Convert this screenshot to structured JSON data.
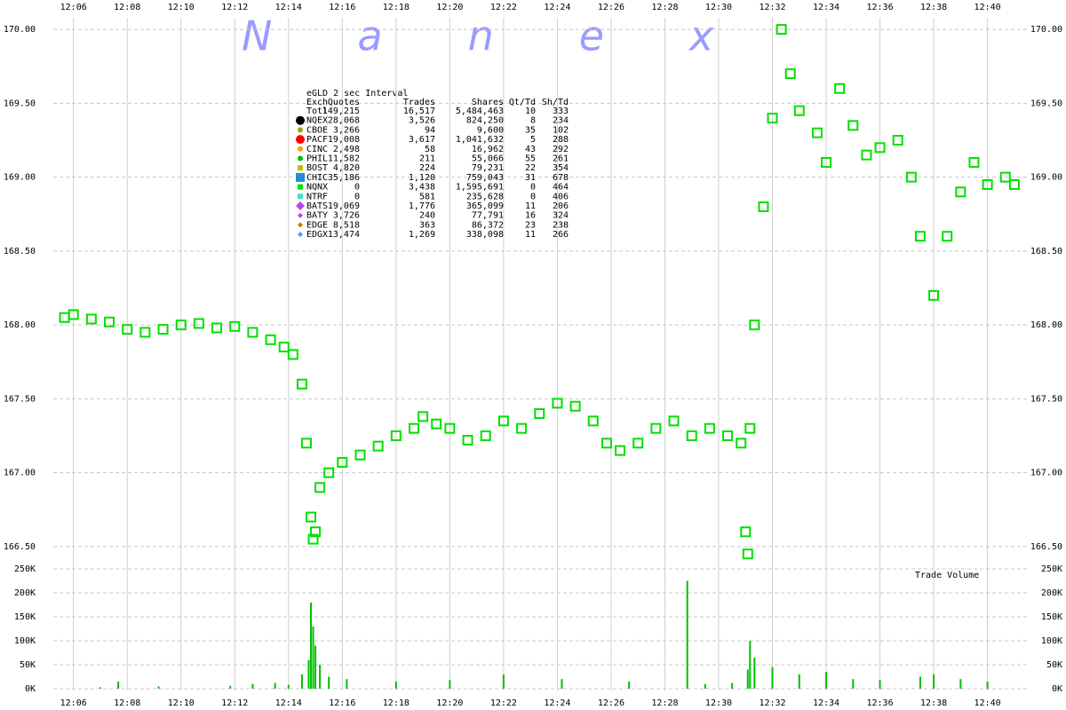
{
  "chart_data": [
    {
      "type": "scatter",
      "watermark": "Nanex",
      "x": [
        "12:05:40",
        "12:06:00",
        "12:06:40",
        "12:07:20",
        "12:08:00",
        "12:08:40",
        "12:09:20",
        "12:10:00",
        "12:10:40",
        "12:11:20",
        "12:12:00",
        "12:12:40",
        "12:13:20",
        "12:13:50",
        "12:14:10",
        "12:14:30",
        "12:14:40",
        "12:14:50",
        "12:14:55",
        "12:15:00",
        "12:15:10",
        "12:15:30",
        "12:16:00",
        "12:16:40",
        "12:17:20",
        "12:18:00",
        "12:18:40",
        "12:19:00",
        "12:19:30",
        "12:20:00",
        "12:20:40",
        "12:21:20",
        "12:22:00",
        "12:22:40",
        "12:23:20",
        "12:24:00",
        "12:24:40",
        "12:25:20",
        "12:25:50",
        "12:26:20",
        "12:27:00",
        "12:27:40",
        "12:28:20",
        "12:29:00",
        "12:29:40",
        "12:30:20",
        "12:30:50",
        "12:31:00",
        "12:31:05",
        "12:31:10",
        "12:31:20",
        "12:31:40",
        "12:32:00",
        "12:32:20",
        "12:32:40",
        "12:33:00",
        "12:33:40",
        "12:34:00",
        "12:34:30",
        "12:35:00",
        "12:35:30",
        "12:36:00",
        "12:36:40",
        "12:37:10",
        "12:37:30",
        "12:38:00",
        "12:38:30",
        "12:39:00",
        "12:39:30",
        "12:40:00",
        "12:40:40",
        "12:41:00"
      ],
      "series": [
        {
          "color": "#00e000",
          "values": [
            168.05,
            168.07,
            168.04,
            168.02,
            167.97,
            167.95,
            167.97,
            168.0,
            168.01,
            167.98,
            167.99,
            167.95,
            167.9,
            167.85,
            167.8,
            167.6,
            167.2,
            166.7,
            166.55,
            166.6,
            166.9,
            167.0,
            167.07,
            167.12,
            167.18,
            167.25,
            167.3,
            167.38,
            167.33,
            167.3,
            167.22,
            167.25,
            167.35,
            167.3,
            167.4,
            167.47,
            167.45,
            167.35,
            167.2,
            167.15,
            167.2,
            167.3,
            167.35,
            167.25,
            167.3,
            167.25,
            167.2,
            166.6,
            166.45,
            167.3,
            168.0,
            168.8,
            169.4,
            170.0,
            169.7,
            169.45,
            169.3,
            169.1,
            169.6,
            169.35,
            169.15,
            169.2,
            169.25,
            169.0,
            168.6,
            168.2,
            168.6,
            168.9,
            169.1,
            168.95,
            169.0,
            168.95
          ]
        }
      ],
      "xlim": [
        "12:05:15",
        "12:41:30"
      ],
      "xticks": [
        "12:06",
        "12:08",
        "12:10",
        "12:12",
        "12:14",
        "12:16",
        "12:18",
        "12:20",
        "12:22",
        "12:24",
        "12:26",
        "12:28",
        "12:30",
        "12:32",
        "12:34",
        "12:36",
        "12:38",
        "12:40"
      ],
      "ylim": [
        166.45,
        170.05
      ],
      "yticks": [
        {
          "value": 166.5,
          "label": "166.50"
        },
        {
          "value": 167,
          "label": "167.00"
        },
        {
          "value": 167.5,
          "label": "167.50"
        },
        {
          "value": 168,
          "label": "168.00"
        },
        {
          "value": 168.5,
          "label": "168.50"
        },
        {
          "value": 169,
          "label": "169.00"
        },
        {
          "value": 169.5,
          "label": "169.50"
        },
        {
          "value": 170,
          "label": "170.00"
        }
      ],
      "grid": true,
      "table": {
        "title": "eGLD 2 sec Interval",
        "header": [
          "Exch",
          "Quotes",
          "Trades",
          "Shares",
          "Qt/Td",
          "Sh/Td"
        ],
        "rows": [
          [
            "Totl",
            "149,215",
            "16,517",
            "5,484,463",
            "10",
            "333"
          ],
          [
            "NQEX",
            "28,068",
            "3,526",
            "824,250",
            "8",
            "234"
          ],
          [
            "CBOE",
            "3,266",
            "94",
            "9,600",
            "35",
            "102"
          ],
          [
            "PACF",
            "19,008",
            "3,617",
            "1,041,632",
            "5",
            "288"
          ],
          [
            "CINC",
            "2,498",
            "58",
            "16,962",
            "43",
            "292"
          ],
          [
            "PHIL",
            "11,582",
            "211",
            "55,066",
            "55",
            "261"
          ],
          [
            "BOST",
            "4,820",
            "224",
            "79,231",
            "22",
            "354"
          ],
          [
            "CHIC",
            "35,186",
            "1,120",
            "759,043",
            "31",
            "678"
          ],
          [
            "NQNX",
            "0",
            "3,438",
            "1,595,691",
            "0",
            "464"
          ],
          [
            "NTRF",
            "0",
            "581",
            "235,628",
            "0",
            "406"
          ],
          [
            "BATS",
            "19,069",
            "1,776",
            "365,099",
            "11",
            "206"
          ],
          [
            "BATY",
            "3,726",
            "240",
            "77,791",
            "16",
            "324"
          ],
          [
            "EDGE",
            "8,518",
            "363",
            "86,372",
            "23",
            "238"
          ],
          [
            "EDGX",
            "13,474",
            "1,269",
            "338,098",
            "11",
            "266"
          ]
        ],
        "row_colors": [
          null,
          "#000000",
          "#a0a000",
          "#ff0000",
          "#ffa000",
          "#00c000",
          "#c0c000",
          "#2090d0",
          "#00e000",
          "#40e0d0",
          "#c040ff",
          "#c040ff",
          "#c08000",
          "#40a0ff"
        ]
      }
    },
    {
      "type": "bar",
      "annotation": "Trade Volume",
      "x": [
        "12:07:00",
        "12:07:40",
        "12:09:10",
        "12:11:50",
        "12:12:40",
        "12:13:30",
        "12:14:00",
        "12:14:30",
        "12:14:45",
        "12:14:50",
        "12:14:55",
        "12:15:00",
        "12:15:10",
        "12:15:30",
        "12:16:10",
        "12:18:00",
        "12:20:00",
        "12:22:00",
        "12:24:10",
        "12:26:40",
        "12:28:50",
        "12:29:30",
        "12:30:30",
        "12:31:05",
        "12:31:10",
        "12:31:20",
        "12:32:00",
        "12:33:00",
        "12:34:00",
        "12:35:00",
        "12:36:00",
        "12:37:30",
        "12:38:00",
        "12:39:00",
        "12:40:00"
      ],
      "series": [
        {
          "color": "#00c000",
          "values": [
            3000,
            15000,
            5000,
            6000,
            10000,
            12000,
            8000,
            30000,
            60000,
            180000,
            130000,
            90000,
            50000,
            25000,
            20000,
            15000,
            18000,
            30000,
            20000,
            15000,
            225000,
            10000,
            12000,
            40000,
            100000,
            65000,
            45000,
            30000,
            35000,
            20000,
            18000,
            25000,
            30000,
            20000,
            15000
          ]
        }
      ],
      "xlim": [
        "12:05:15",
        "12:41:30"
      ],
      "ylim": [
        0,
        250000
      ],
      "yticks": [
        {
          "value": 0,
          "label": "0K"
        },
        {
          "value": 50000,
          "label": "50K"
        },
        {
          "value": 100000,
          "label": "100K"
        },
        {
          "value": 150000,
          "label": "150K"
        },
        {
          "value": 200000,
          "label": "200K"
        },
        {
          "value": 250000,
          "label": "250K"
        }
      ],
      "grid": true
    }
  ]
}
